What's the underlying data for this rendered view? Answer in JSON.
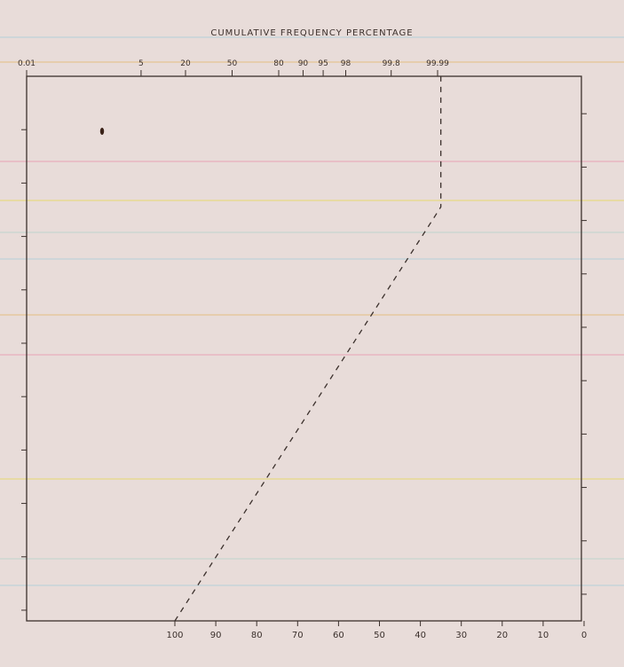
{
  "colors": {
    "paper": "#e8dcd9",
    "ink": "#3b302c",
    "stripes": [
      "#b9d2d9",
      "#e6c28a",
      "#e9a9b9",
      "#e7da7a",
      "#c3d5cf"
    ]
  },
  "chart_data": {
    "type": "line",
    "title": "CUMULATIVE FREQUENCY PERCENTAGE",
    "xlabel": "",
    "ylabel": "",
    "grid": false,
    "top_axis": {
      "scale": "probability",
      "ticks": [
        "0.01",
        "5",
        "20",
        "50",
        "80",
        "90",
        "95",
        "98",
        "99.8",
        "99.99"
      ],
      "tick_values": [
        0.01,
        5,
        20,
        50,
        80,
        90,
        95,
        98,
        99.8,
        99.99
      ]
    },
    "bottom_axis": {
      "ticks": [
        "100",
        "90",
        "80",
        "70",
        "60",
        "50",
        "40",
        "30",
        "20",
        "10",
        "0"
      ],
      "tick_values": [
        100,
        90,
        80,
        70,
        60,
        50,
        40,
        30,
        20,
        10,
        0
      ],
      "reversed": true
    },
    "series": [
      {
        "line_style": "dashed",
        "x": [
          100,
          35,
          35
        ],
        "y_fraction_of_height": [
          0.0,
          0.76,
          1.0
        ]
      }
    ],
    "y_tick_count_left": 10,
    "y_tick_count_right": 10
  }
}
